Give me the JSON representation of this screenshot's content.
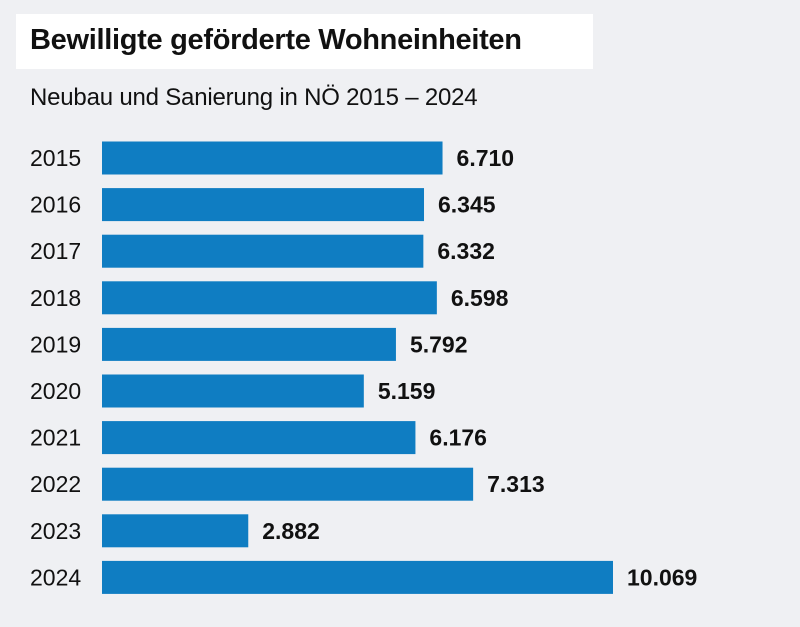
{
  "header": {
    "title": "Bewilligte geförderte Wohneinheiten",
    "subtitle": "Neubau und Sanierung in NÖ 2015 – 2024"
  },
  "colors": {
    "background": "#eff0f3",
    "bar": "#0f7dc2",
    "text": "#111111",
    "title_box": "#ffffff"
  },
  "chart_data": {
    "type": "bar",
    "orientation": "horizontal",
    "title": "Bewilligte geförderte Wohneinheiten",
    "subtitle": "Neubau und Sanierung in NÖ 2015 – 2024",
    "categories": [
      "2015",
      "2016",
      "2017",
      "2018",
      "2019",
      "2020",
      "2021",
      "2022",
      "2023",
      "2024"
    ],
    "values": [
      6710,
      6345,
      6332,
      6598,
      5792,
      5159,
      6176,
      7313,
      2882,
      10069
    ],
    "value_labels": [
      "6.710",
      "6.345",
      "6.332",
      "6.598",
      "5.792",
      "5.159",
      "6.176",
      "7.313",
      "2.882",
      "10.069"
    ],
    "xlim": [
      0,
      10069
    ],
    "grid": false,
    "legend": "none"
  }
}
